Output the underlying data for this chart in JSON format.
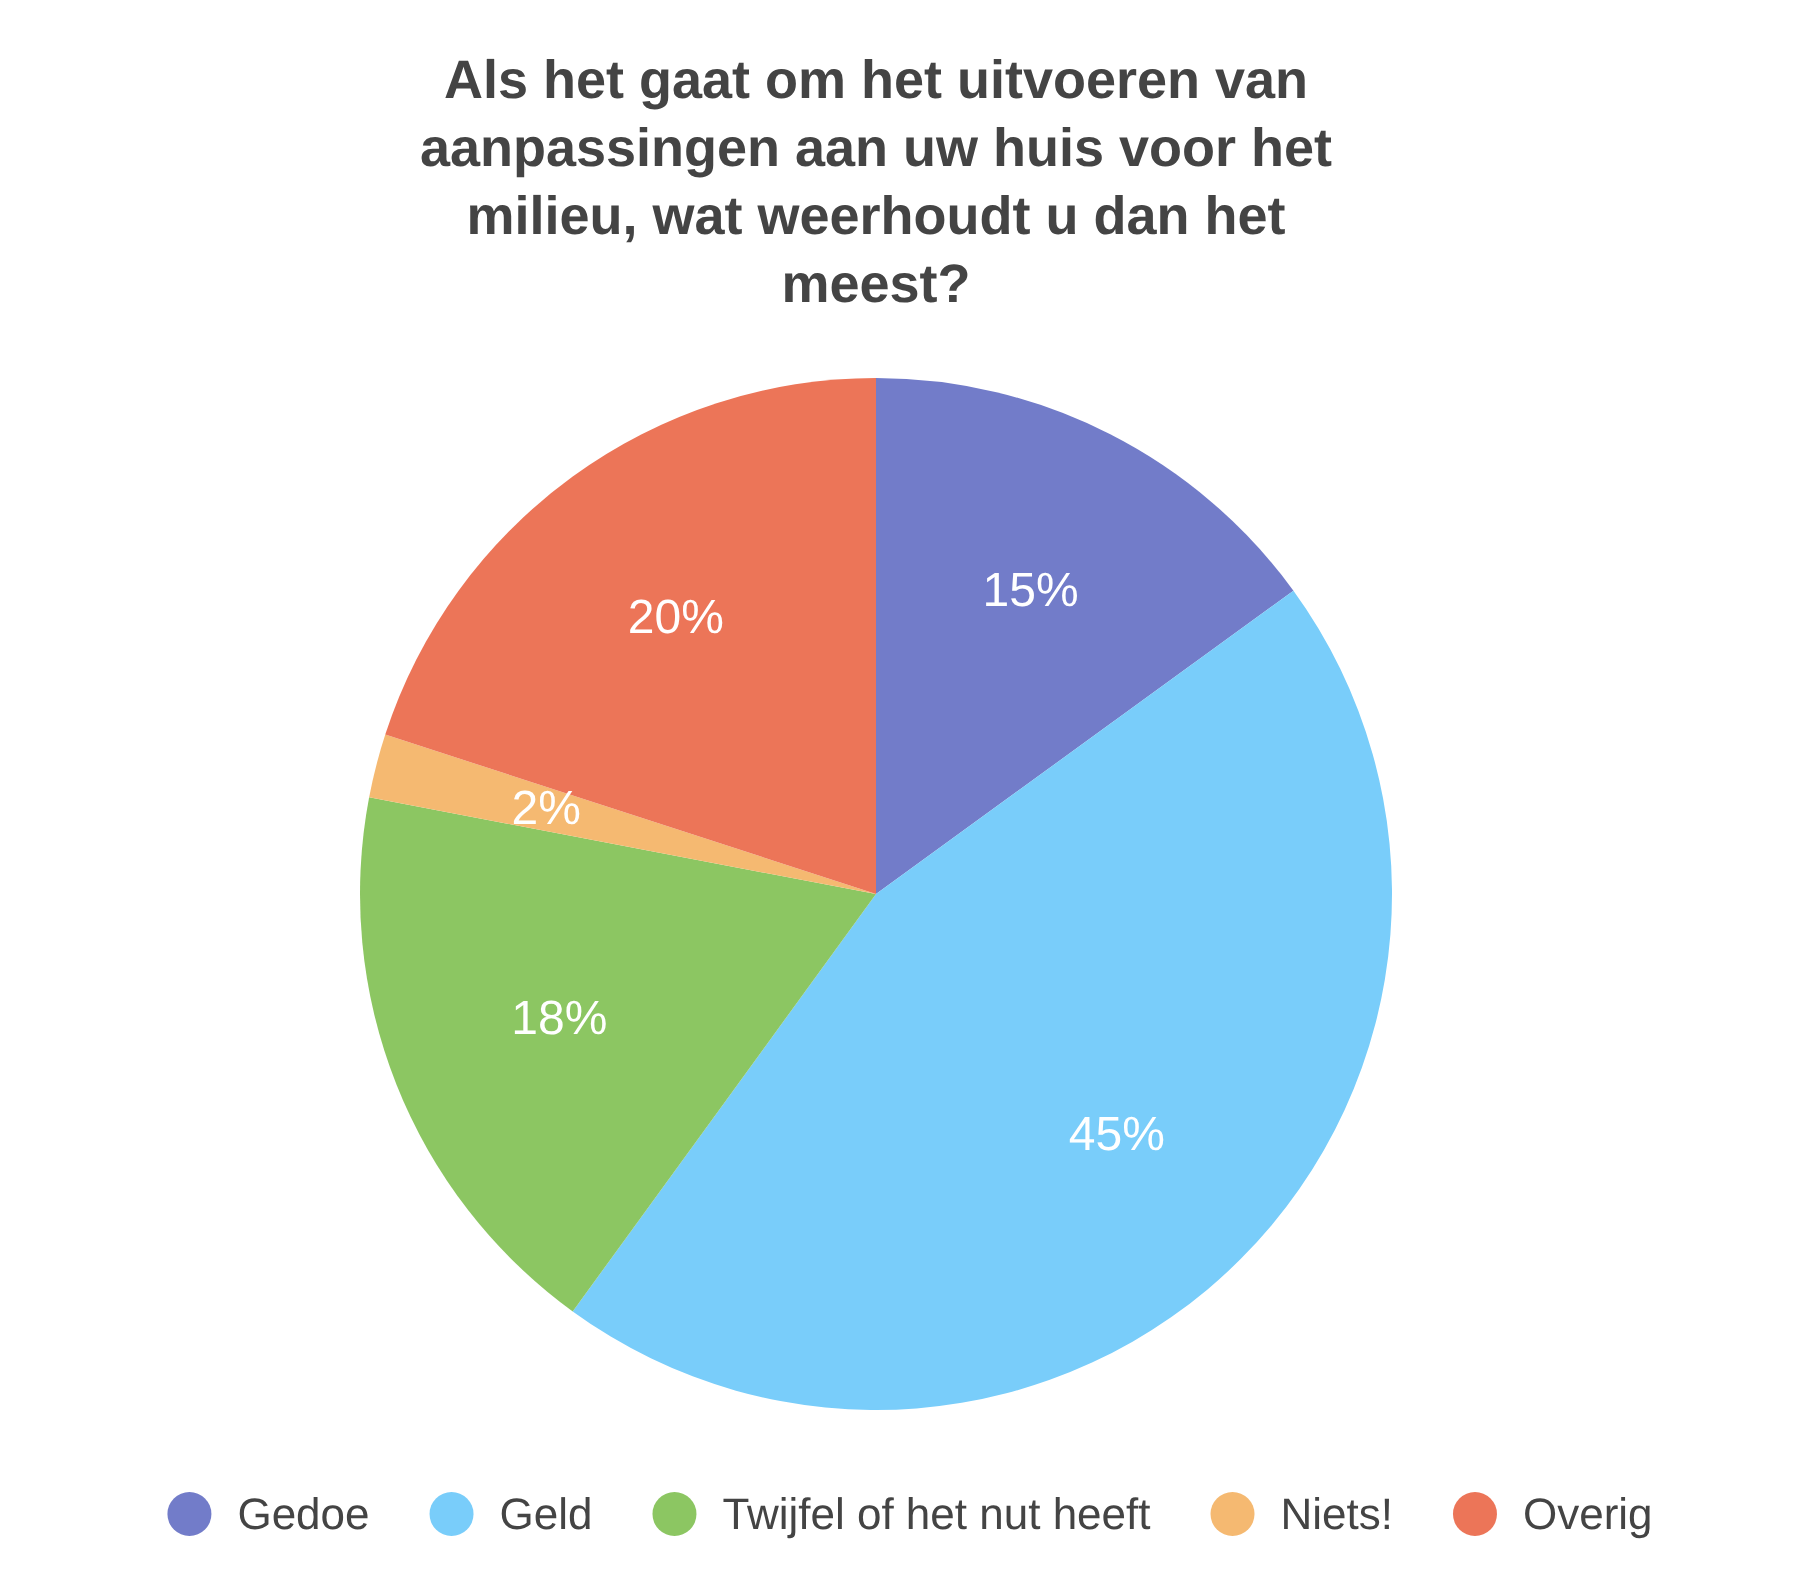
{
  "chart_data": {
    "type": "pie",
    "title": "Als het gaat om het uitvoeren van aanpassingen aan uw huis voor het milieu, wat weerhoudt u dan het meest?",
    "categories": [
      "Gedoe",
      "Geld",
      "Twijfel of het nut heeft",
      "Niets!",
      "Overig"
    ],
    "values": [
      15,
      45,
      18,
      2,
      20
    ],
    "colors": [
      "#727cc9",
      "#79cdfa",
      "#8cc662",
      "#f5b971",
      "#ec7558"
    ],
    "value_labels": [
      "15%",
      "45%",
      "18%",
      "2%",
      "20%"
    ],
    "legend": "bottom"
  }
}
